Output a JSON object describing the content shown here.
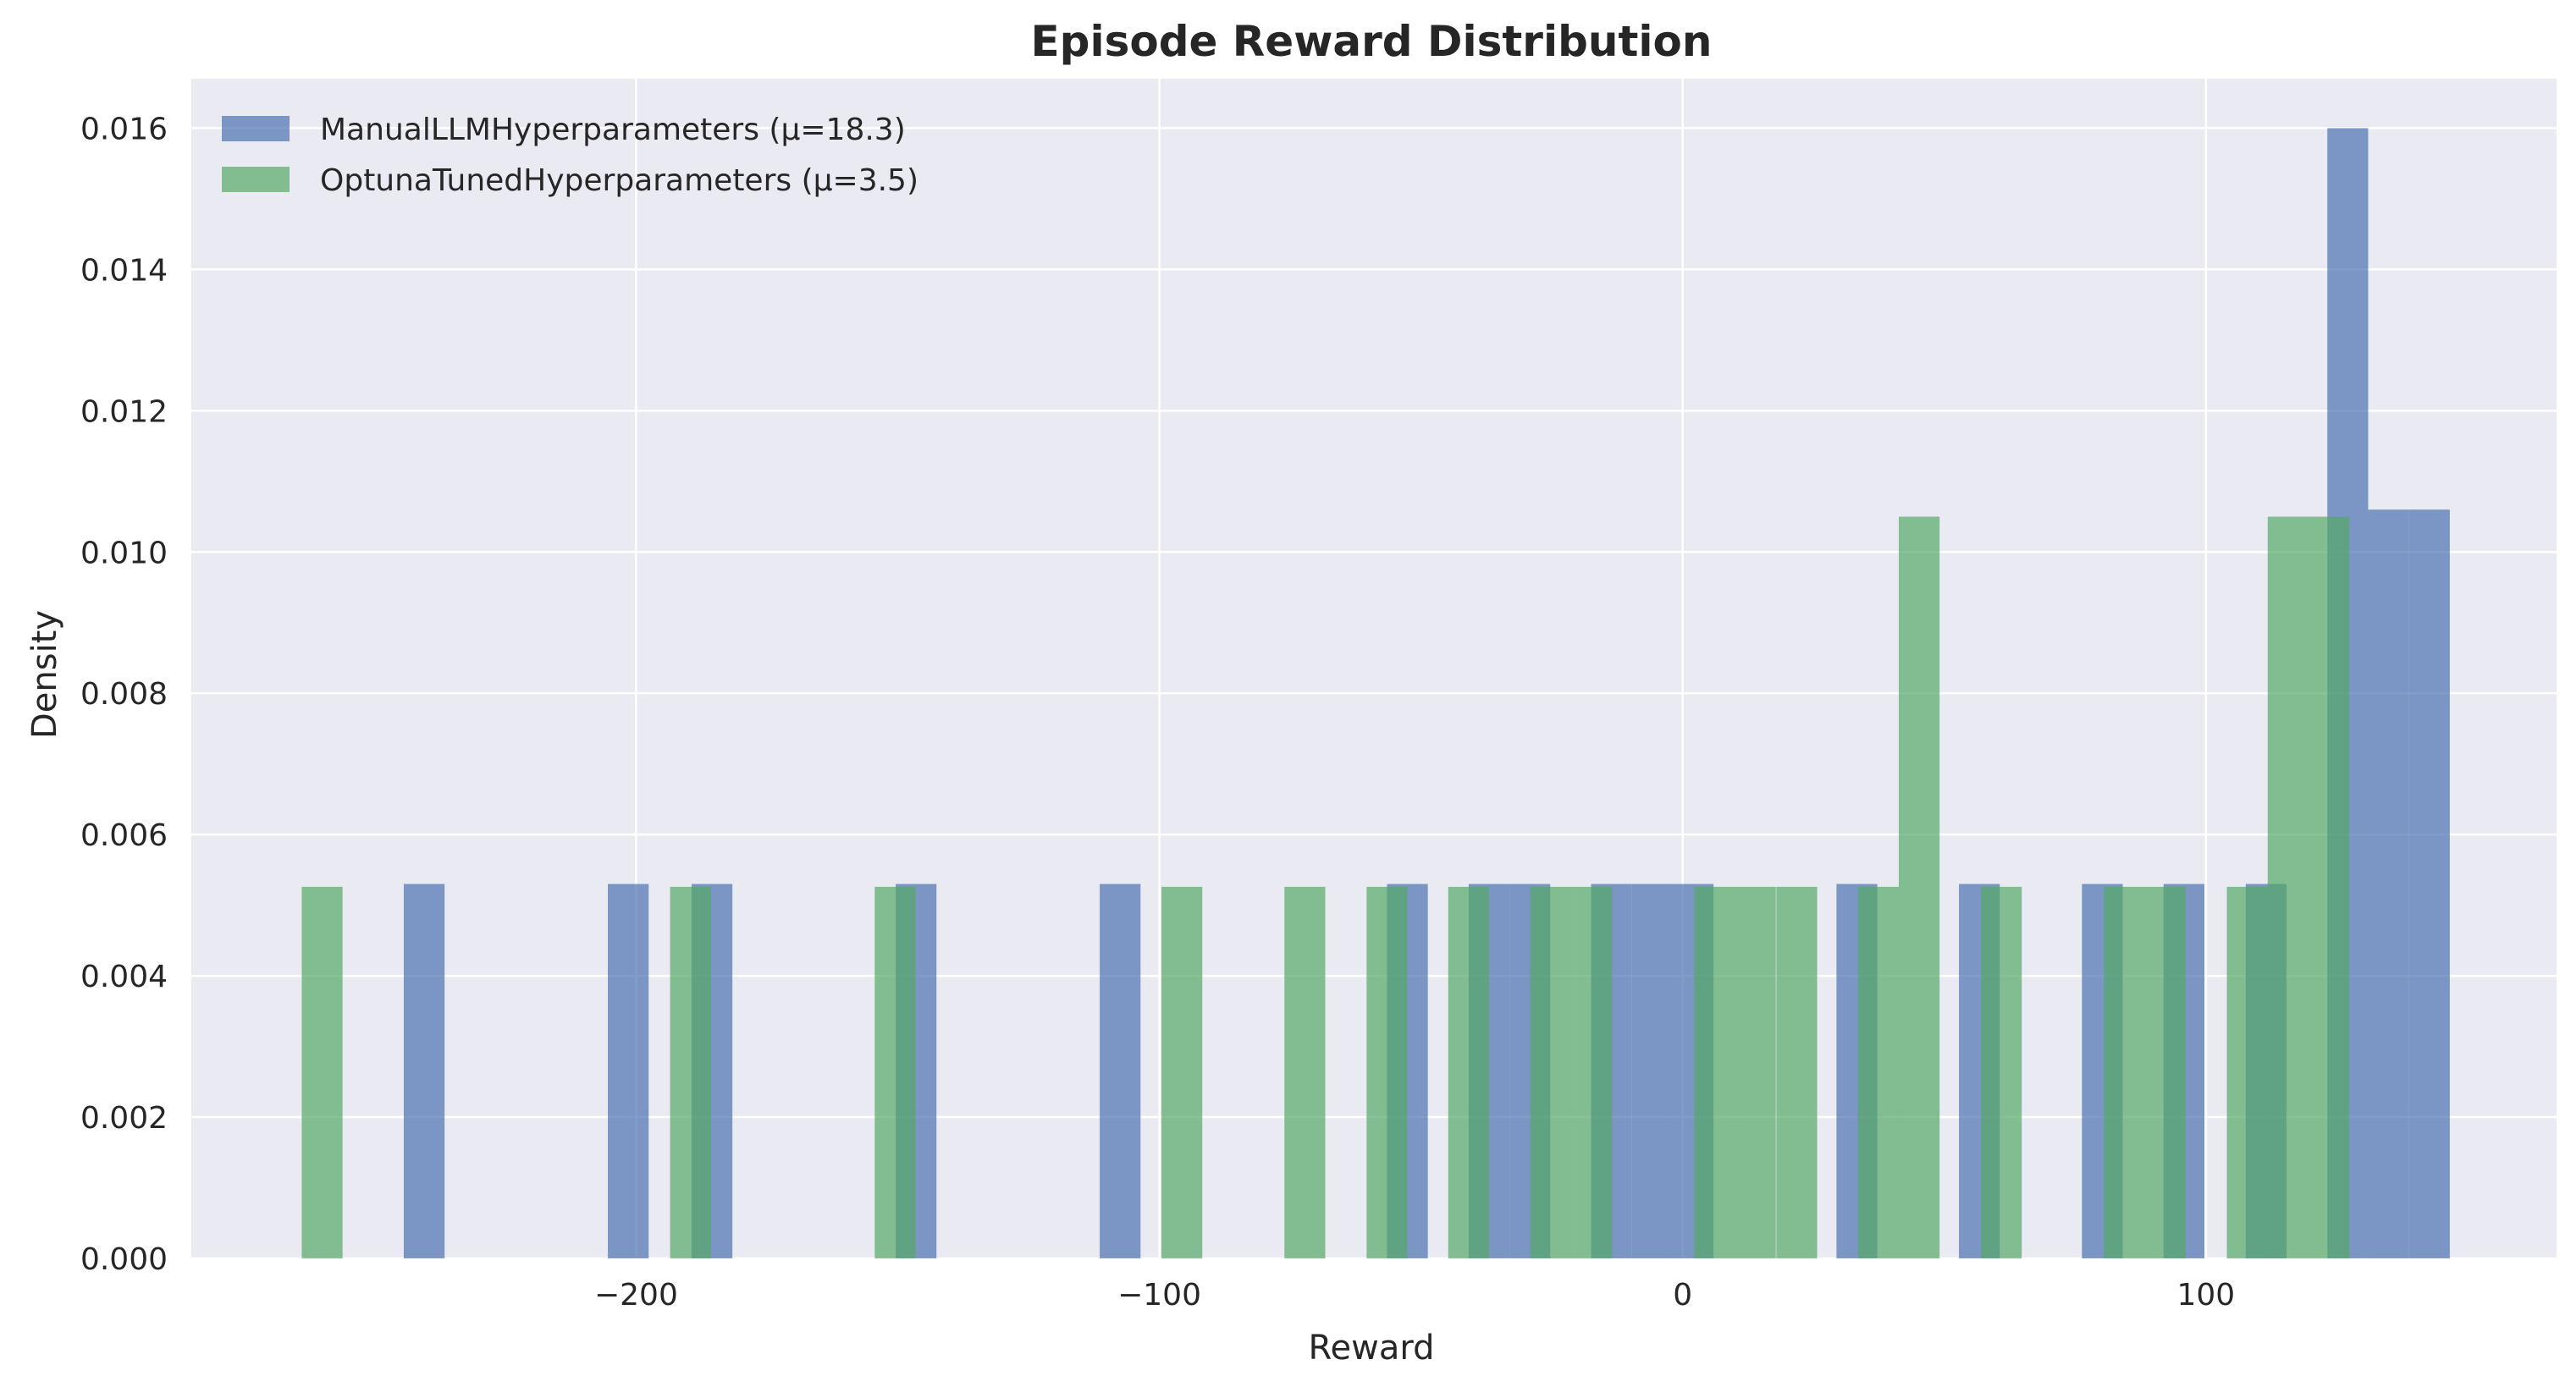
{
  "chart_data": {
    "type": "bar",
    "title": "Episode Reward Distribution",
    "xlabel": "Reward",
    "ylabel": "Density",
    "xlim": [
      -285,
      167
    ],
    "ylim": [
      0,
      0.0167
    ],
    "xticks": [
      -200,
      -100,
      0,
      100
    ],
    "xtick_labels": [
      "−200",
      "−100",
      "0",
      "100"
    ],
    "yticks": [
      0,
      0.002,
      0.004,
      0.006,
      0.008,
      0.01,
      0.012,
      0.014,
      0.016
    ],
    "ytick_labels": [
      "0.000",
      "0.002",
      "0.004",
      "0.006",
      "0.008",
      "0.010",
      "0.012",
      "0.014",
      "0.016"
    ],
    "grid": true,
    "legend_position": "top-left",
    "colors": {
      "manual": "#4c72b0",
      "optuna": "#55a868",
      "plot_background": "#eaeaf2",
      "grid": "#ffffff"
    },
    "series": [
      {
        "name": "ManualLLMHyperparameters (μ=18.3)",
        "key": "manual",
        "bin_width": 7.8,
        "bins": [
          {
            "x": -240.5,
            "density": 0.0053
          },
          {
            "x": -201.5,
            "density": 0.0053
          },
          {
            "x": -185.5,
            "density": 0.0053
          },
          {
            "x": -146.5,
            "density": 0.0053
          },
          {
            "x": -107.5,
            "density": 0.0053
          },
          {
            "x": -52.6,
            "density": 0.0053
          },
          {
            "x": -37.0,
            "density": 0.0053
          },
          {
            "x": -29.2,
            "density": 0.0053
          },
          {
            "x": -13.6,
            "density": 0.0053
          },
          {
            "x": -5.8,
            "density": 0.0053
          },
          {
            "x": 2.0,
            "density": 0.0053
          },
          {
            "x": 33.3,
            "density": 0.0053
          },
          {
            "x": 56.7,
            "density": 0.0053
          },
          {
            "x": 80.2,
            "density": 0.0053
          },
          {
            "x": 95.8,
            "density": 0.0053
          },
          {
            "x": 111.5,
            "density": 0.0053
          },
          {
            "x": 127.1,
            "density": 0.016
          },
          {
            "x": 134.9,
            "density": 0.0106
          },
          {
            "x": 142.7,
            "density": 0.0106
          }
        ]
      },
      {
        "name": "OptunaTunedHyperparameters (μ=3.5)",
        "key": "optuna",
        "bin_width": 7.8,
        "bins": [
          {
            "x": -260.0,
            "density": 0.00526
          },
          {
            "x": -189.6,
            "density": 0.00526
          },
          {
            "x": -150.5,
            "density": 0.00526
          },
          {
            "x": -95.7,
            "density": 0.00526
          },
          {
            "x": -72.2,
            "density": 0.00526
          },
          {
            "x": -56.5,
            "density": 0.00526
          },
          {
            "x": -40.9,
            "density": 0.00526
          },
          {
            "x": -25.2,
            "density": 0.00526
          },
          {
            "x": -17.4,
            "density": 0.00526
          },
          {
            "x": 6.1,
            "density": 0.00526
          },
          {
            "x": 13.9,
            "density": 0.00526
          },
          {
            "x": 21.8,
            "density": 0.00526
          },
          {
            "x": 37.4,
            "density": 0.00526
          },
          {
            "x": 45.2,
            "density": 0.0105
          },
          {
            "x": 60.9,
            "density": 0.00526
          },
          {
            "x": 84.4,
            "density": 0.00526
          },
          {
            "x": 92.2,
            "density": 0.00526
          },
          {
            "x": 107.9,
            "density": 0.00526
          },
          {
            "x": 115.7,
            "density": 0.0105
          },
          {
            "x": 123.5,
            "density": 0.0105
          }
        ]
      }
    ]
  }
}
